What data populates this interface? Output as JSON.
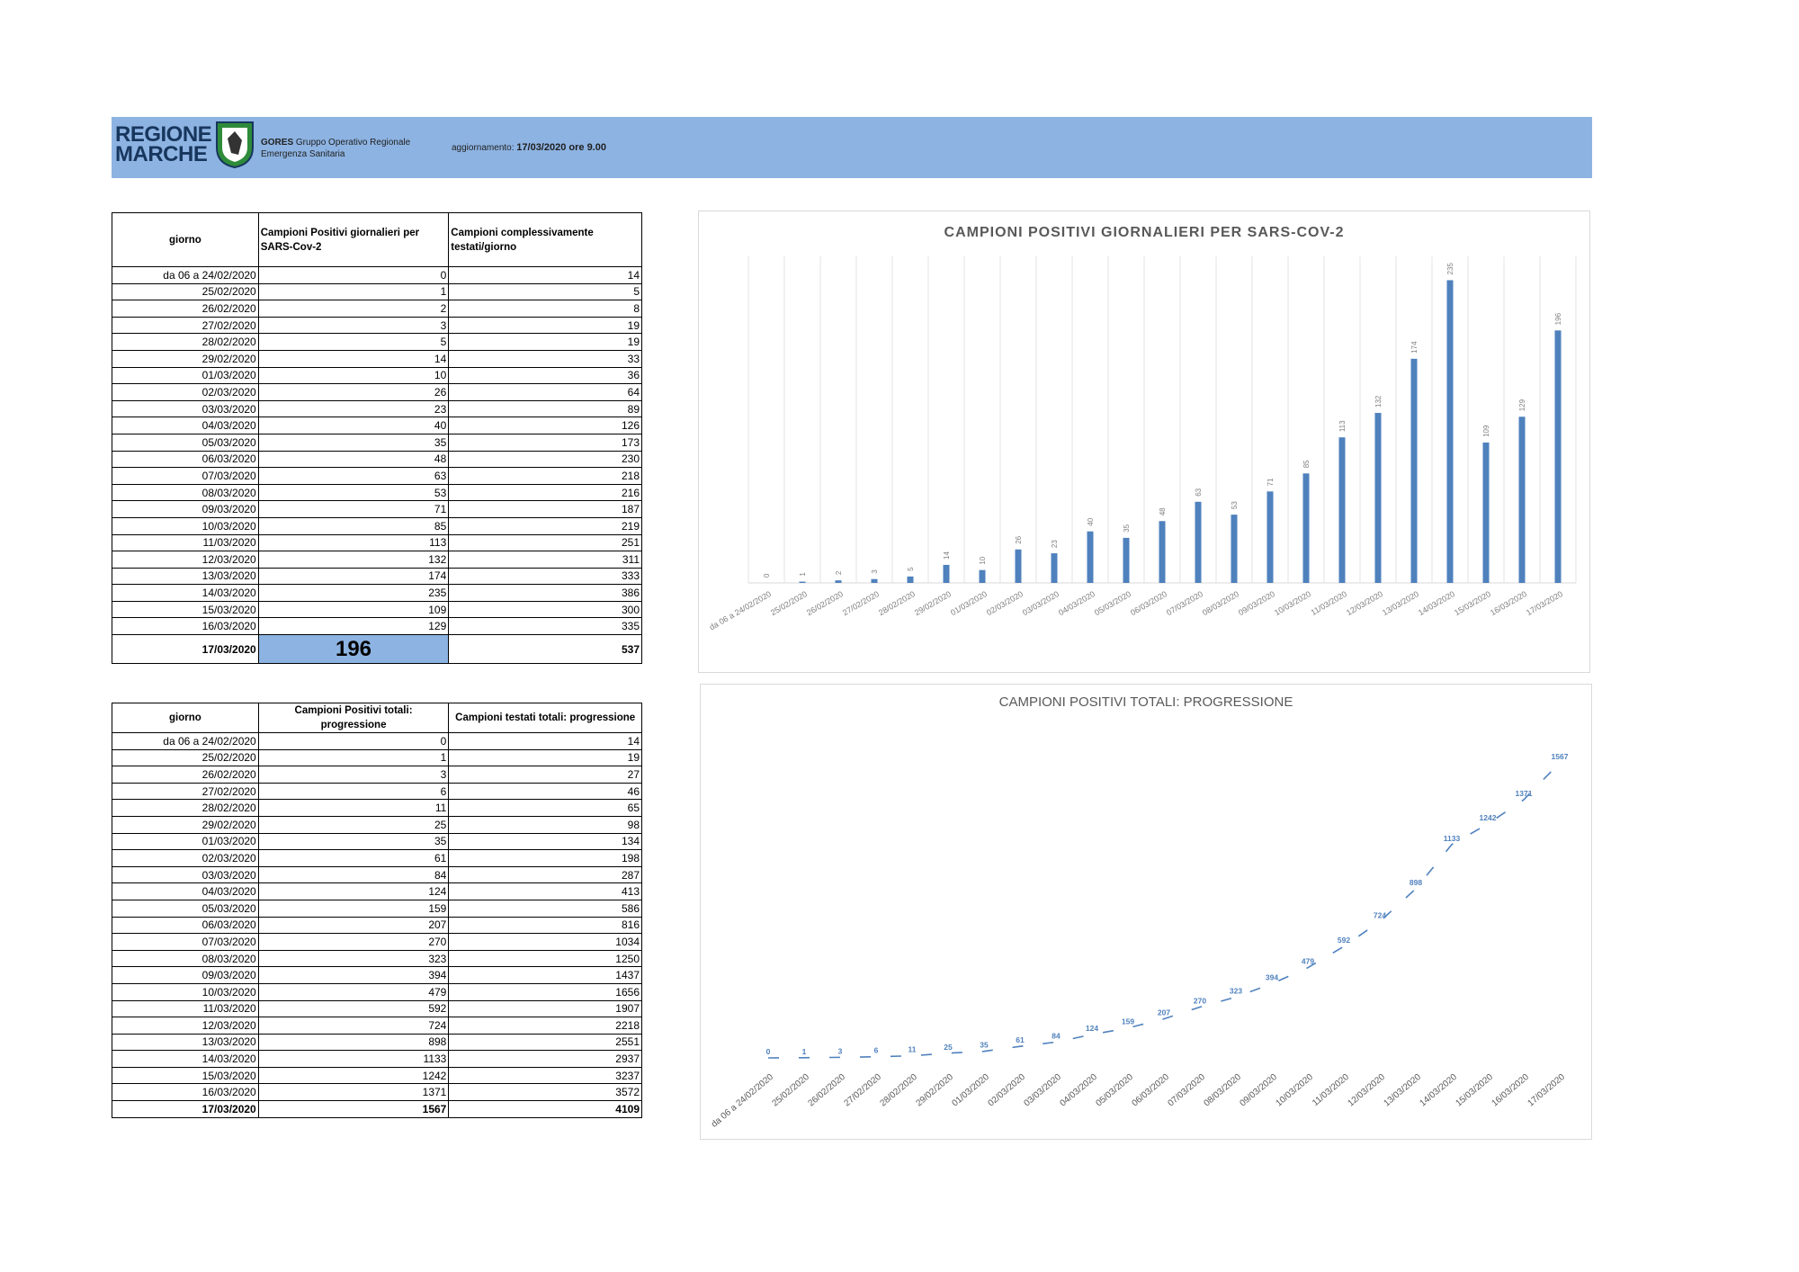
{
  "header": {
    "logo_line1": "REGIONE",
    "logo_line2": "MARCHE",
    "org_name": "GORES",
    "org_desc": "Gruppo Operativo Regionale",
    "org_sub": "Emergenza Sanitaria",
    "update_label": "aggiornamento:",
    "update_value": "17/03/2020 ore 9.00"
  },
  "table1": {
    "col1": "giorno",
    "col2": "Campioni Positivi giornalieri per SARS-Cov-2",
    "col3": "Campioni complessivamente testati/giorno",
    "rows": [
      [
        "da 06 a 24/02/2020",
        "0",
        "14"
      ],
      [
        "25/02/2020",
        "1",
        "5"
      ],
      [
        "26/02/2020",
        "2",
        "8"
      ],
      [
        "27/02/2020",
        "3",
        "19"
      ],
      [
        "28/02/2020",
        "5",
        "19"
      ],
      [
        "29/02/2020",
        "14",
        "33"
      ],
      [
        "01/03/2020",
        "10",
        "36"
      ],
      [
        "02/03/2020",
        "26",
        "64"
      ],
      [
        "03/03/2020",
        "23",
        "89"
      ],
      [
        "04/03/2020",
        "40",
        "126"
      ],
      [
        "05/03/2020",
        "35",
        "173"
      ],
      [
        "06/03/2020",
        "48",
        "230"
      ],
      [
        "07/03/2020",
        "63",
        "218"
      ],
      [
        "08/03/2020",
        "53",
        "216"
      ],
      [
        "09/03/2020",
        "71",
        "187"
      ],
      [
        "10/03/2020",
        "85",
        "219"
      ],
      [
        "11/03/2020",
        "113",
        "251"
      ],
      [
        "12/03/2020",
        "132",
        "311"
      ],
      [
        "13/03/2020",
        "174",
        "333"
      ],
      [
        "14/03/2020",
        "235",
        "386"
      ],
      [
        "15/03/2020",
        "109",
        "300"
      ],
      [
        "16/03/2020",
        "129",
        "335"
      ]
    ],
    "last": [
      "17/03/2020",
      "196",
      "537"
    ]
  },
  "table2": {
    "col1": "giorno",
    "col2": "Campioni Positivi totali: progressione",
    "col3": "Campioni testati totali: progressione",
    "rows": [
      [
        "da 06 a 24/02/2020",
        "0",
        "14"
      ],
      [
        "25/02/2020",
        "1",
        "19"
      ],
      [
        "26/02/2020",
        "3",
        "27"
      ],
      [
        "27/02/2020",
        "6",
        "46"
      ],
      [
        "28/02/2020",
        "11",
        "65"
      ],
      [
        "29/02/2020",
        "25",
        "98"
      ],
      [
        "01/03/2020",
        "35",
        "134"
      ],
      [
        "02/03/2020",
        "61",
        "198"
      ],
      [
        "03/03/2020",
        "84",
        "287"
      ],
      [
        "04/03/2020",
        "124",
        "413"
      ],
      [
        "05/03/2020",
        "159",
        "586"
      ],
      [
        "06/03/2020",
        "207",
        "816"
      ],
      [
        "07/03/2020",
        "270",
        "1034"
      ],
      [
        "08/03/2020",
        "323",
        "1250"
      ],
      [
        "09/03/2020",
        "394",
        "1437"
      ],
      [
        "10/03/2020",
        "479",
        "1656"
      ],
      [
        "11/03/2020",
        "592",
        "1907"
      ],
      [
        "12/03/2020",
        "724",
        "2218"
      ],
      [
        "13/03/2020",
        "898",
        "2551"
      ],
      [
        "14/03/2020",
        "1133",
        "2937"
      ],
      [
        "15/03/2020",
        "1242",
        "3237"
      ],
      [
        "16/03/2020",
        "1371",
        "3572"
      ]
    ],
    "last": [
      "17/03/2020",
      "1567",
      "4109"
    ]
  },
  "chart_data": [
    {
      "type": "bar",
      "title": "CAMPIONI POSITIVI GIORNALIERI PER SARS-COV-2",
      "categories": [
        "da 06 a 24/02/2020",
        "25/02/2020",
        "26/02/2020",
        "27/02/2020",
        "28/02/2020",
        "29/02/2020",
        "01/03/2020",
        "02/03/2020",
        "03/03/2020",
        "04/03/2020",
        "05/03/2020",
        "06/03/2020",
        "07/03/2020",
        "08/03/2020",
        "09/03/2020",
        "10/03/2020",
        "11/03/2020",
        "12/03/2020",
        "13/03/2020",
        "14/03/2020",
        "15/03/2020",
        "16/03/2020",
        "17/03/2020"
      ],
      "values": [
        0,
        1,
        2,
        3,
        5,
        14,
        10,
        26,
        23,
        40,
        35,
        48,
        63,
        53,
        71,
        85,
        113,
        132,
        174,
        235,
        109,
        129,
        196
      ],
      "ylim": [
        0,
        250
      ],
      "grid": "vertical",
      "color": "#4f81bd"
    },
    {
      "type": "line",
      "title": "CAMPIONI POSITIVI TOTALI: PROGRESSIONE",
      "categories": [
        "da 06 a 24/02/2020",
        "25/02/2020",
        "26/02/2020",
        "27/02/2020",
        "28/02/2020",
        "29/02/2020",
        "01/03/2020",
        "02/03/2020",
        "03/03/2020",
        "04/03/2020",
        "05/03/2020",
        "06/03/2020",
        "07/03/2020",
        "08/03/2020",
        "09/03/2020",
        "10/03/2020",
        "11/03/2020",
        "12/03/2020",
        "13/03/2020",
        "14/03/2020",
        "15/03/2020",
        "16/03/2020",
        "17/03/2020"
      ],
      "values": [
        0,
        1,
        3,
        6,
        11,
        25,
        35,
        61,
        84,
        124,
        159,
        207,
        270,
        323,
        394,
        479,
        592,
        724,
        898,
        1133,
        1242,
        1371,
        1567
      ],
      "ylim": [
        0,
        1600
      ],
      "grid": "none",
      "color": "#4f81bd"
    }
  ]
}
